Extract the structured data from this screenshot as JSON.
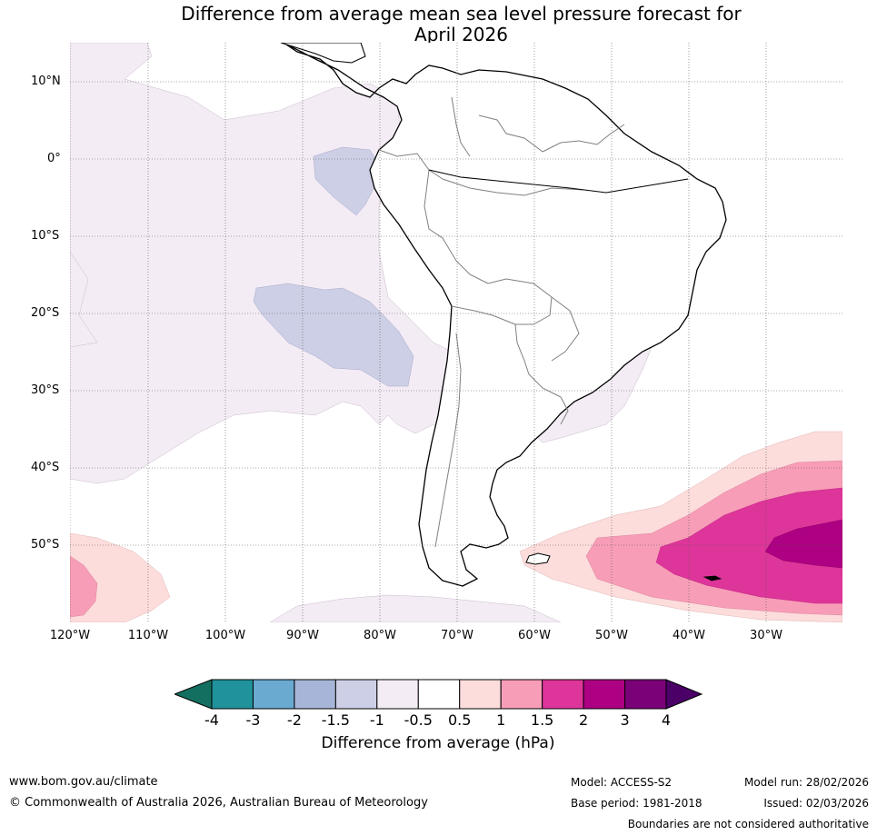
{
  "title": {
    "line1": "Difference from average mean sea level pressure forecast for",
    "line2": "April 2026"
  },
  "map": {
    "lat_labels": [
      "10°N",
      "0°",
      "10°S",
      "20°S",
      "30°S",
      "40°S",
      "50°S"
    ],
    "lon_labels": [
      "120°W",
      "110°W",
      "100°W",
      "90°W",
      "80°W",
      "70°W",
      "60°W",
      "50°W",
      "40°W",
      "30°W"
    ]
  },
  "colorbar": {
    "label": "Difference from average (hPa)",
    "ticks": [
      "-4",
      "-3",
      "-2",
      "-1.5",
      "-1",
      "-0.5",
      "0.5",
      "1",
      "1.5",
      "2",
      "3",
      "4"
    ],
    "colors": [
      "#137061",
      "#1f929b",
      "#6aaad1",
      "#a7b6d8",
      "#cdcfe6",
      "#f4ecf5",
      "#ffffff",
      "#fddcdc",
      "#f89db7",
      "#de359a",
      "#ae0082",
      "#7b0179",
      "#4b0068"
    ]
  },
  "footer": {
    "website": "www.bom.gov.au/climate",
    "copyright": "© Commonwealth of Australia 2026, Australian Bureau of Meteorology",
    "model": "Model: ACCESS-S2",
    "base_period": "Base period: 1981-2018",
    "model_run": "Model run: 28/02/2026",
    "issued": "Issued: 02/03/2026",
    "disclaimer": "Boundaries are not considered authoritative"
  }
}
